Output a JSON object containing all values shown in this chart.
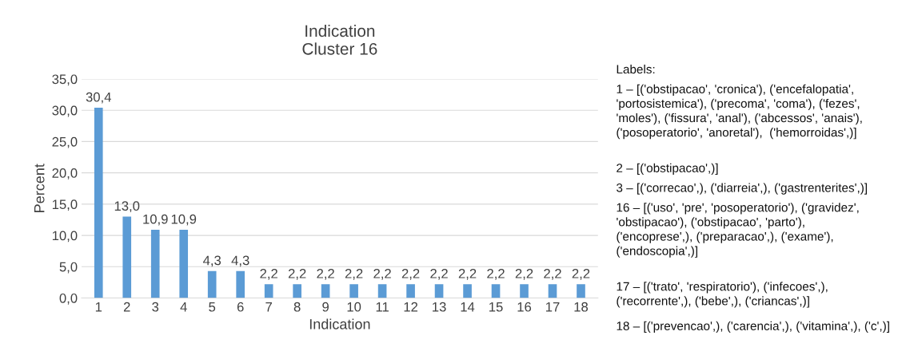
{
  "chart_data": {
    "type": "bar",
    "title": "Indication\nCluster 16",
    "xlabel": "Indication",
    "ylabel": "Percent",
    "categories": [
      "1",
      "2",
      "3",
      "4",
      "5",
      "6",
      "7",
      "8",
      "9",
      "10",
      "11",
      "12",
      "13",
      "14",
      "15",
      "16",
      "17",
      "18"
    ],
    "values": [
      30.4,
      13.0,
      10.9,
      10.9,
      4.3,
      4.3,
      2.2,
      2.2,
      2.2,
      2.2,
      2.2,
      2.2,
      2.2,
      2.2,
      2.2,
      2.2,
      2.2,
      2.2
    ],
    "value_labels": [
      "30,4",
      "13,0",
      "10,9",
      "10,9",
      "4,3",
      "4,3",
      "2,2",
      "2,2",
      "2,2",
      "2,2",
      "2,2",
      "2,2",
      "2,2",
      "2,2",
      "2,2",
      "2,2",
      "2,2",
      "2,2"
    ],
    "color": "#5b9bd5",
    "ylim": [
      0,
      35
    ],
    "yticks": [
      {
        "value": 0,
        "label": "0,0"
      },
      {
        "value": 5,
        "label": "5,0"
      },
      {
        "value": 10,
        "label": "10,0"
      },
      {
        "value": 15,
        "label": "15,0"
      },
      {
        "value": 20,
        "label": "20,0"
      },
      {
        "value": 25,
        "label": "25,0"
      },
      {
        "value": 30,
        "label": "30,0"
      },
      {
        "value": 35,
        "label": "35,0"
      }
    ],
    "grid": "y",
    "annotations": [
      "Labels:",
      "1 – [('obstipacao', 'cronica'), ('encefalopatia',\n'portosistemica'), ('precoma', 'coma'), ('fezes',\n'moles'), ('fissura', 'anal'), ('abcessos', 'anais'),\n('posoperatorio', 'anoretal'),  ('hemorroidas',)]",
      "2 – [('obstipacao',)]",
      "3 – [('correcao',), ('diarreia',), ('gastrenterites',)]",
      "16 – [('uso', 'pre', 'posoperatorio'), ('gravidez',\n'obstipacao'), ('obstipacao', 'parto'),\n('encoprese',), ('preparacao',), ('exame'),\n('endoscopia',)]",
      "17 – [('trato', 'respiratorio'), ('infecoes',),\n('recorrente',), ('bebe',), ('criancas',)]",
      "18 – [('prevencao',), ('carencia',), ('vitamina',), ('c',)]"
    ]
  }
}
